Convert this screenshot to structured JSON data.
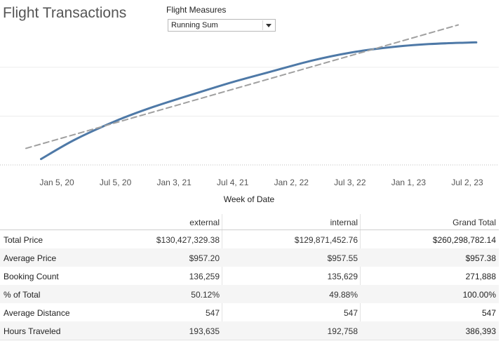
{
  "title": "Flight Transactions",
  "measures_control": {
    "label": "Flight Measures",
    "selected": "Running Sum"
  },
  "chart_data": {
    "type": "line",
    "title": "",
    "xlabel": "Week of Date",
    "ylabel": "",
    "x_tick_labels": [
      "Jan 5, 20",
      "Jul 5, 20",
      "Jan 3, 21",
      "Jul 4, 21",
      "Jan 2, 22",
      "Jul 3, 22",
      "Jan 1, 23",
      "Jul 2, 23"
    ],
    "x_tick_dates": [
      "2020-01-05",
      "2020-07-05",
      "2021-01-03",
      "2021-07-04",
      "2022-01-02",
      "2022-07-03",
      "2023-01-01",
      "2023-07-02"
    ],
    "series": [
      {
        "style": "solid",
        "color": "#4e79a7",
        "x": [
          "2019-11-17",
          "2020-03-01",
          "2020-07-05",
          "2020-11-01",
          "2021-03-07",
          "2021-07-04",
          "2021-11-07",
          "2022-03-06",
          "2022-07-03",
          "2022-11-06",
          "2023-03-05",
          "2023-07-02",
          "2023-07-30"
        ],
        "values": [
          3.2,
          13.7,
          23.8,
          31.6,
          38.6,
          45.0,
          51.0,
          56.6,
          60.9,
          63.9,
          65.6,
          66.4,
          66.5
        ]
      },
      {
        "style": "dashed",
        "color": "#a0a0a0",
        "x": [
          "2019-10-01",
          "2023-06-04"
        ],
        "values": [
          9.0,
          76.0
        ]
      }
    ],
    "grid": true
  },
  "table": {
    "columns": [
      "external",
      "internal",
      "Grand Total"
    ],
    "rows": [
      {
        "label": "Total Price",
        "values": [
          "$130,427,329.38",
          "$129,871,452.76",
          "$260,298,782.14"
        ]
      },
      {
        "label": "Average Price",
        "values": [
          "$957.20",
          "$957.55",
          "$957.38"
        ]
      },
      {
        "label": "Booking Count",
        "values": [
          "136,259",
          "135,629",
          "271,888"
        ]
      },
      {
        "label": "% of Total",
        "values": [
          "50.12%",
          "49.88%",
          "100.00%"
        ]
      },
      {
        "label": "Average Distance",
        "values": [
          "547",
          "547",
          "547"
        ]
      },
      {
        "label": "Hours Traveled",
        "values": [
          "193,635",
          "192,758",
          "386,393"
        ]
      }
    ]
  }
}
